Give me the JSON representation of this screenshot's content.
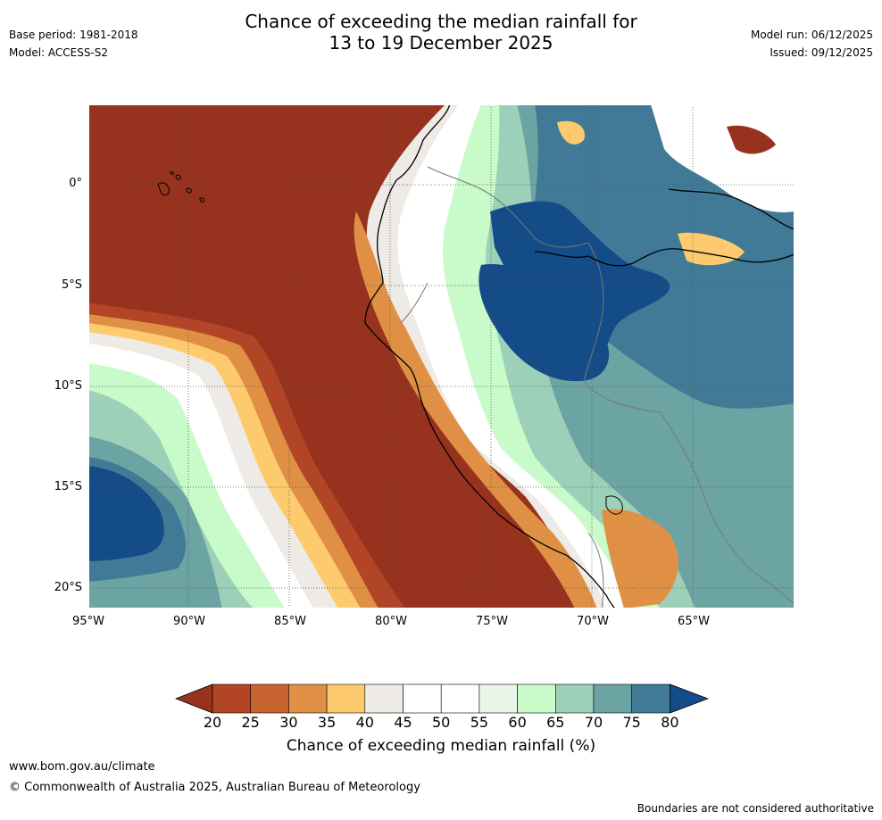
{
  "header": {
    "title_line1": "Chance of exceeding the median rainfall for",
    "title_line2": "13 to 19 December 2025",
    "base_period": "Base period: 1981-2018",
    "model": "Model: ACCESS-S2",
    "model_run": "Model run: 06/12/2025",
    "issued": "Issued: 09/12/2025"
  },
  "map": {
    "lat_labels": [
      "0°",
      "5°S",
      "10°S",
      "15°S",
      "20°S"
    ],
    "lon_labels": [
      "95°W",
      "90°W",
      "85°W",
      "80°W",
      "75°W",
      "70°W",
      "65°W"
    ],
    "lat_values": [
      0,
      -5,
      -10,
      -15,
      -20
    ],
    "lon_values": [
      -95,
      -90,
      -85,
      -80,
      -75,
      -70,
      -65
    ],
    "extent": {
      "lon_min": -95,
      "lon_max": -60,
      "lat_min": -21,
      "lat_max": 4
    }
  },
  "colorbar": {
    "tick_labels": [
      "20",
      "25",
      "30",
      "35",
      "40",
      "45",
      "50",
      "55",
      "60",
      "65",
      "70",
      "75",
      "80"
    ],
    "colors": [
      "#97321f",
      "#b14526",
      "#c8642f",
      "#e09044",
      "#fdcb6e",
      "#eeeae5",
      "#ffffff",
      "#ffffff",
      "#eaf5ea",
      "#c9fac9",
      "#9dd0b8",
      "#6ca3a3",
      "#417a96",
      "#144c87"
    ],
    "title": "Chance of exceeding median rainfall (%)"
  },
  "footer": {
    "url": "www.bom.gov.au/climate",
    "copyright": "© Commonwealth of Australia 2025, Australian Bureau of Meteorology",
    "note": "Boundaries are not considered authoritative"
  }
}
